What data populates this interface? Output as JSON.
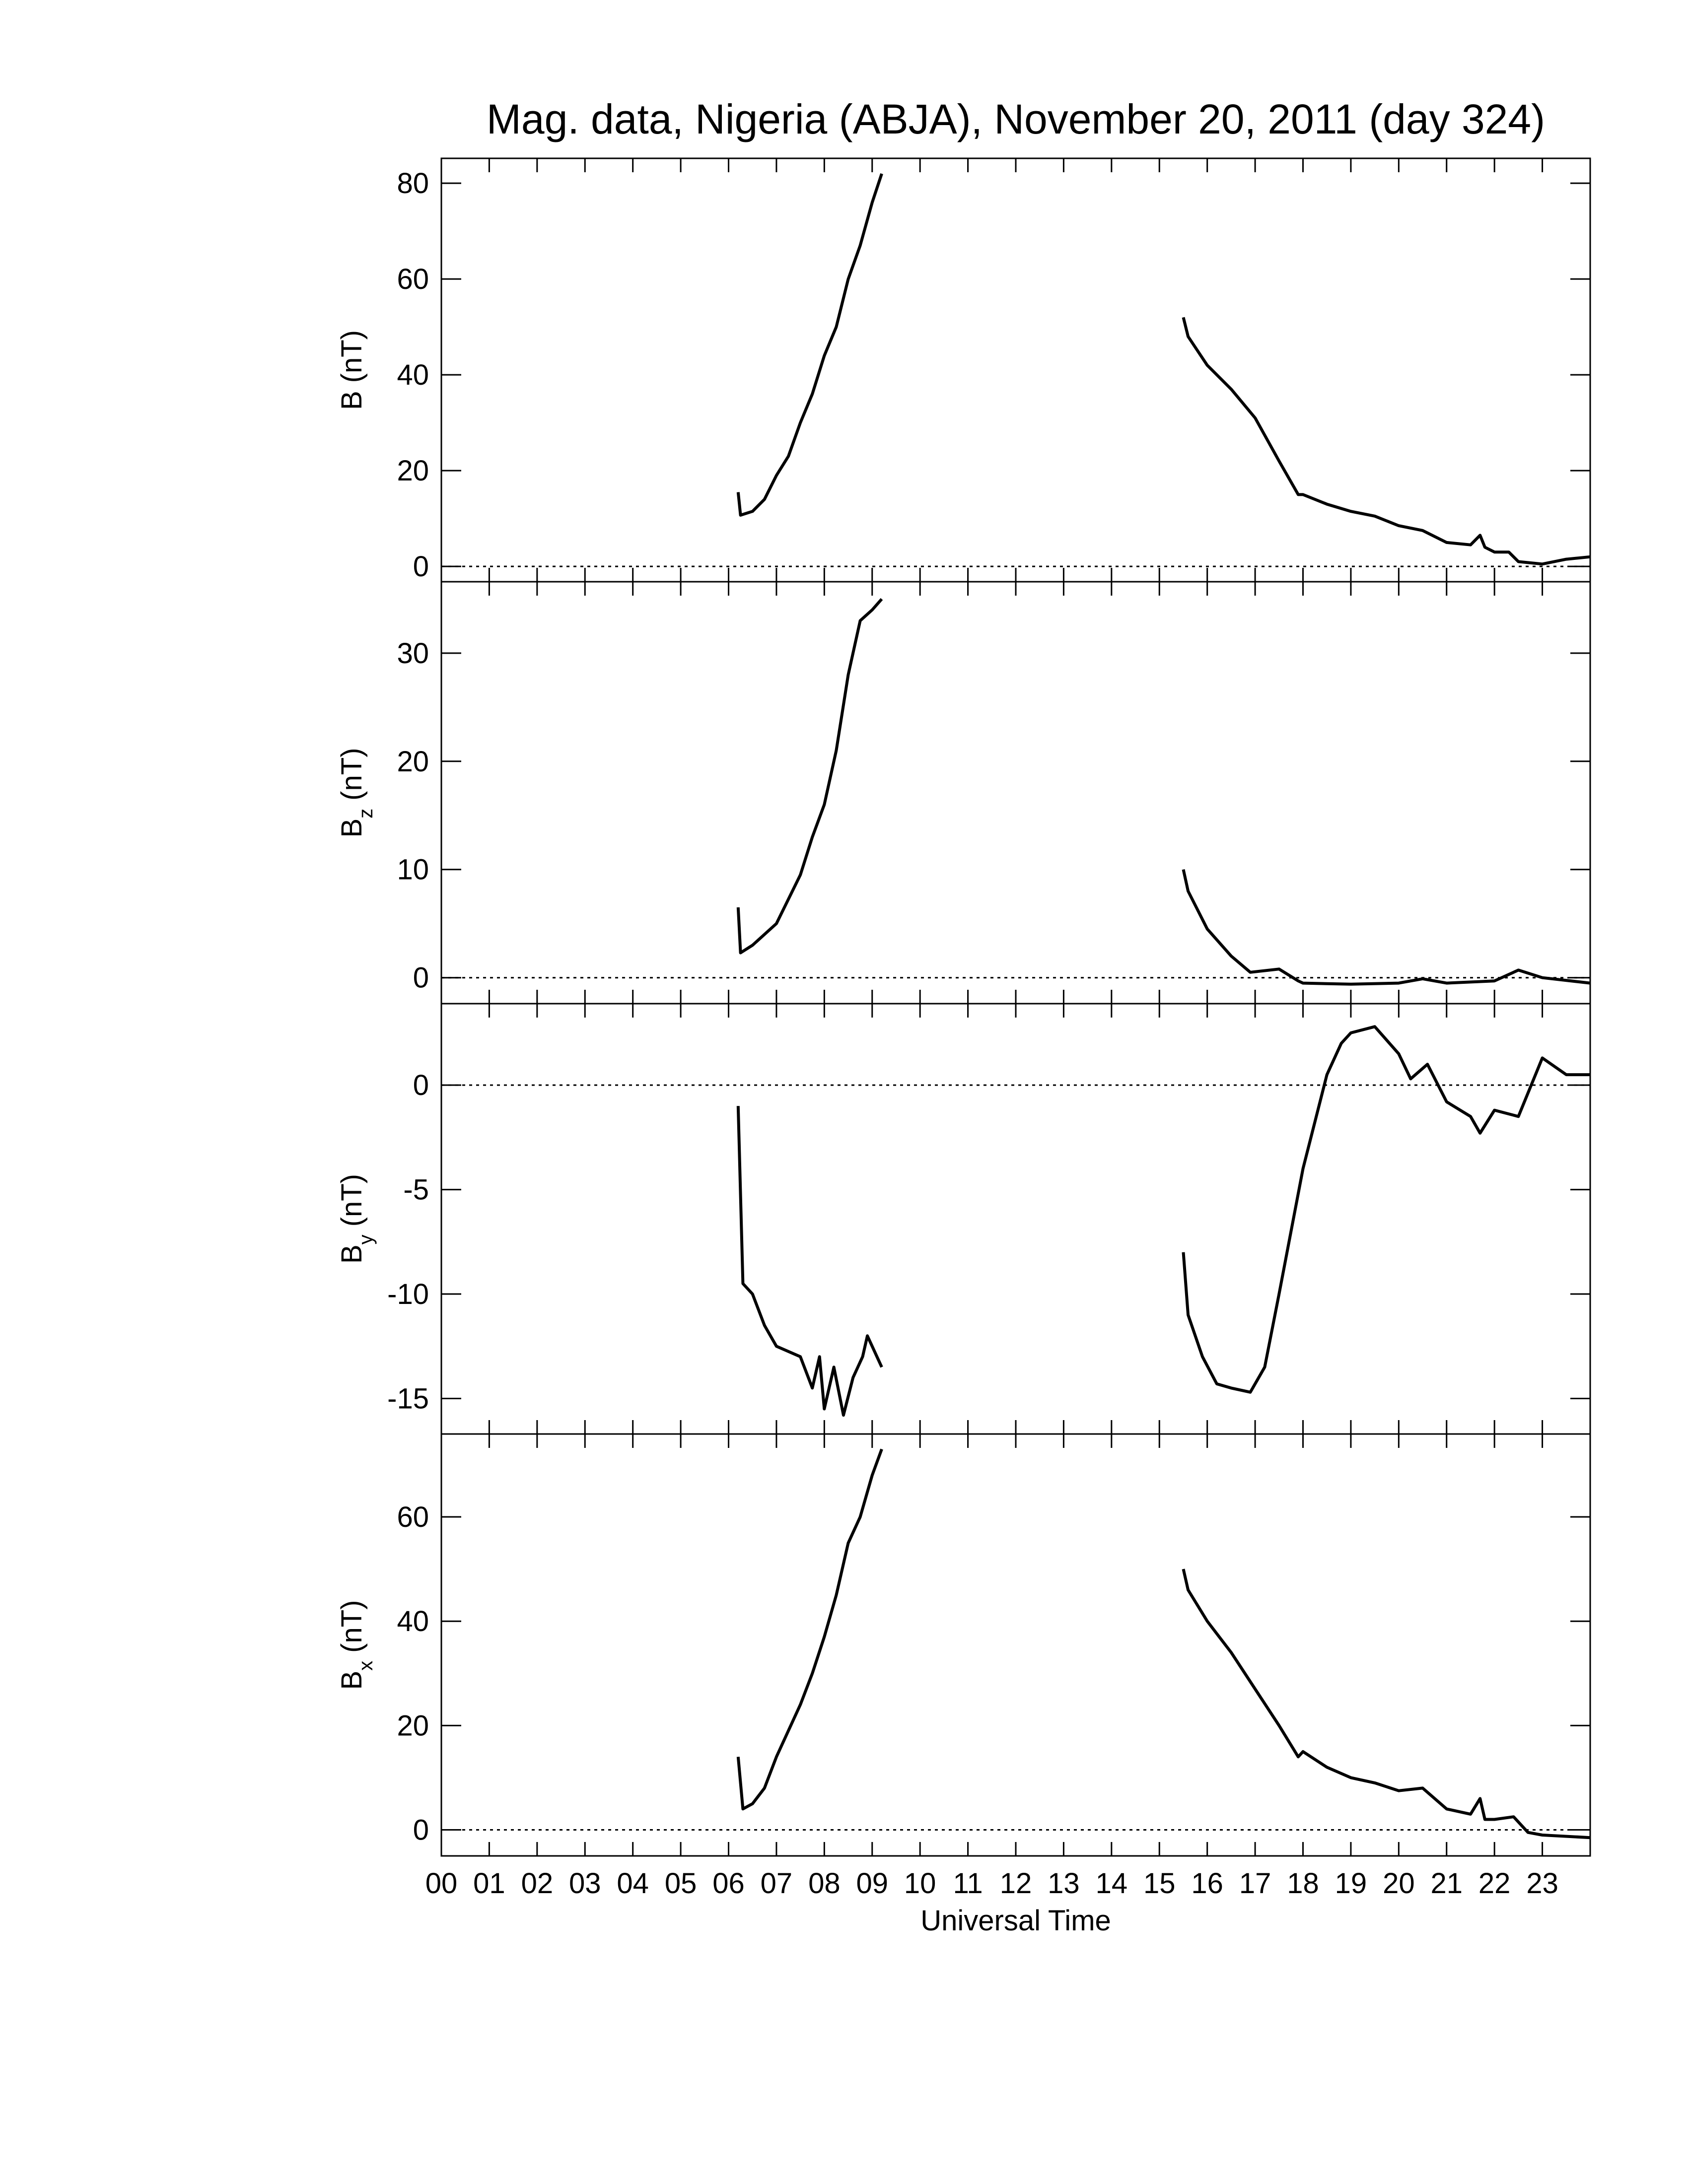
{
  "chart_data": [
    {
      "type": "line",
      "title": "Mag. data, Nigeria (ABJA), November 20, 2011 (day 324)",
      "ylabel": "B",
      "ylabel_unit": "(nT)",
      "color": "#000000",
      "hline": 0,
      "xlim": [
        0,
        24
      ],
      "ylim": [
        -3.2,
        85.2
      ],
      "yticks": [
        0,
        20,
        40,
        60,
        80
      ],
      "x": [
        6.2,
        6.25,
        6.5,
        6.75,
        7.0,
        7.25,
        7.5,
        7.75,
        8.0,
        8.25,
        8.5,
        8.75,
        9.0,
        9.2,
        12,
        15.5,
        15.6,
        16.0,
        16.5,
        17.0,
        17.5,
        17.9,
        18.0,
        18.5,
        19.0,
        19.5,
        20.0,
        20.5,
        21.0,
        21.5,
        21.7,
        21.8,
        22.0,
        22.3,
        22.5,
        23.0,
        23.5,
        24
      ],
      "values": [
        15.5,
        10.7,
        11.5,
        14,
        19,
        23,
        30,
        36,
        44,
        50,
        60,
        67,
        76,
        82,
        null,
        52,
        48,
        42,
        37,
        31,
        22,
        15,
        15,
        13,
        11.5,
        10.5,
        8.5,
        7.5,
        5,
        4.5,
        6.5,
        4,
        3,
        3,
        1,
        0.5,
        1.5,
        2
      ]
    },
    {
      "type": "line",
      "ylabel": "B",
      "ylabel_sub": "z",
      "ylabel_unit": "(nT)",
      "color": "#000000",
      "hline": 0,
      "xlim": [
        0,
        24
      ],
      "ylim": [
        -2.4,
        36.6
      ],
      "yticks": [
        0,
        10,
        20,
        30
      ],
      "x": [
        6.2,
        6.25,
        6.5,
        7.0,
        7.5,
        7.75,
        8.0,
        8.25,
        8.5,
        8.75,
        9.0,
        9.2,
        12,
        15.5,
        15.6,
        16.0,
        16.5,
        16.9,
        17.5,
        17.9,
        18.0,
        19.0,
        20.0,
        20.5,
        21.0,
        22.0,
        22.5,
        23.0,
        24
      ],
      "values": [
        6.5,
        2.3,
        3.0,
        5,
        9.5,
        13,
        16,
        21,
        28,
        33,
        34,
        35,
        null,
        10,
        8,
        4.5,
        2,
        0.5,
        0.8,
        -0.3,
        -0.5,
        -0.6,
        -0.5,
        -0.1,
        -0.5,
        -0.3,
        0.7,
        0,
        -0.5
      ]
    },
    {
      "type": "line",
      "ylabel": "B",
      "ylabel_sub": "y",
      "ylabel_unit": "(nT)",
      "color": "#000000",
      "hline": 0,
      "xlim": [
        0,
        24
      ],
      "ylim": [
        -16.7,
        3.9
      ],
      "yticks": [
        -15,
        -10,
        -5,
        0
      ],
      "x": [
        6.2,
        6.3,
        6.5,
        6.75,
        7.0,
        7.5,
        7.75,
        7.9,
        8.0,
        8.2,
        8.4,
        8.6,
        8.8,
        8.9,
        9.2,
        12,
        15.5,
        15.6,
        15.9,
        16.2,
        16.5,
        16.9,
        17.2,
        17.5,
        18.0,
        18.5,
        18.8,
        19.0,
        19.5,
        20.0,
        20.25,
        20.6,
        21.0,
        21.5,
        21.7,
        22.0,
        22.5,
        23.0,
        23.5,
        24
      ],
      "values": [
        -1,
        -9.5,
        -10,
        -11.5,
        -12.5,
        -13,
        -14.5,
        -13,
        -15.5,
        -13.5,
        -15.8,
        -14,
        -13,
        -12,
        -13.5,
        null,
        -8,
        -11,
        -13,
        -14.3,
        -14.5,
        -14.7,
        -13.5,
        -10,
        -4,
        0.5,
        2,
        2.5,
        2.8,
        1.5,
        0.3,
        1,
        -0.8,
        -1.5,
        -2.3,
        -1.2,
        -1.5,
        1.3,
        0.5,
        0.5
      ]
    },
    {
      "type": "line",
      "ylabel": "B",
      "ylabel_sub": "x",
      "ylabel_unit": "(nT)",
      "xlabel": "Universal Time",
      "color": "#000000",
      "hline": 0,
      "xlim": [
        0,
        24
      ],
      "ylim": [
        -5,
        75.9
      ],
      "yticks": [
        0,
        20,
        40,
        60
      ],
      "xticks": [
        {
          "value": 0,
          "label": "00"
        },
        {
          "value": 1,
          "label": "01"
        },
        {
          "value": 2,
          "label": "02"
        },
        {
          "value": 3,
          "label": "03"
        },
        {
          "value": 4,
          "label": "04"
        },
        {
          "value": 5,
          "label": "05"
        },
        {
          "value": 6,
          "label": "06"
        },
        {
          "value": 7,
          "label": "07"
        },
        {
          "value": 8,
          "label": "08"
        },
        {
          "value": 9,
          "label": "09"
        },
        {
          "value": 10,
          "label": "10"
        },
        {
          "value": 11,
          "label": "11"
        },
        {
          "value": 12,
          "label": "12"
        },
        {
          "value": 13,
          "label": "13"
        },
        {
          "value": 14,
          "label": "14"
        },
        {
          "value": 15,
          "label": "15"
        },
        {
          "value": 16,
          "label": "16"
        },
        {
          "value": 17,
          "label": "17"
        },
        {
          "value": 18,
          "label": "18"
        },
        {
          "value": 19,
          "label": "19"
        },
        {
          "value": 20,
          "label": "20"
        },
        {
          "value": 21,
          "label": "21"
        },
        {
          "value": 22,
          "label": "22"
        },
        {
          "value": 23,
          "label": "23"
        }
      ],
      "x": [
        6.2,
        6.3,
        6.5,
        6.75,
        7.0,
        7.5,
        7.75,
        8.0,
        8.25,
        8.5,
        8.75,
        9.0,
        9.2,
        12,
        15.5,
        15.6,
        16.0,
        16.5,
        17.0,
        17.5,
        17.9,
        18.0,
        18.5,
        19.0,
        19.5,
        20.0,
        20.5,
        21.0,
        21.5,
        21.7,
        21.8,
        22.0,
        22.4,
        22.7,
        23.0,
        24
      ],
      "values": [
        14,
        4,
        5,
        8,
        14,
        24,
        30,
        37,
        45,
        55,
        60,
        68,
        73,
        null,
        50,
        46,
        40,
        34,
        27,
        20,
        14,
        15,
        12,
        10,
        9,
        7.5,
        8,
        4,
        3,
        6,
        2,
        2,
        2.5,
        -0.5,
        -1,
        -1.5
      ]
    }
  ]
}
